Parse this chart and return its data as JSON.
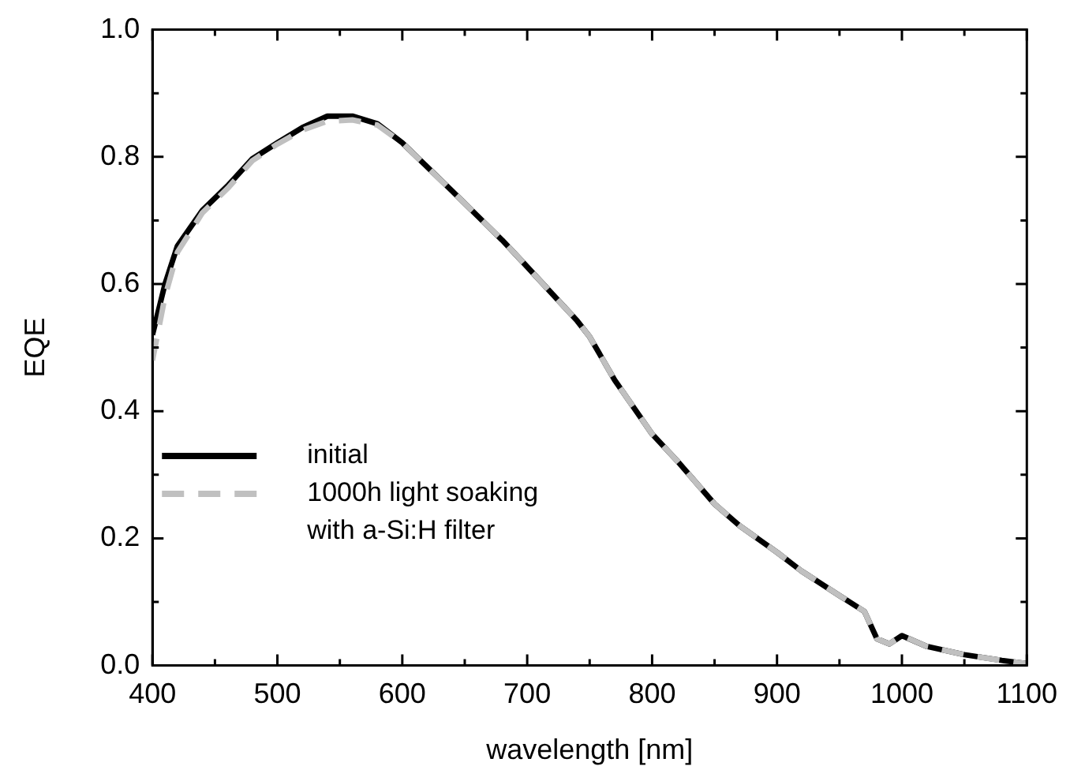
{
  "chart_data": {
    "type": "line",
    "xlabel": "wavelength [nm]",
    "ylabel": "EQE",
    "x": [
      400,
      410,
      420,
      440,
      460,
      480,
      500,
      520,
      540,
      560,
      580,
      600,
      640,
      680,
      700,
      740,
      750,
      770,
      800,
      820,
      850,
      870,
      900,
      920,
      950,
      970,
      980,
      990,
      1000,
      1020,
      1050,
      1080,
      1100
    ],
    "series": [
      {
        "name": "initial",
        "color": "#000000",
        "line_style": "solid",
        "values": [
          0.52,
          0.6,
          0.66,
          0.716,
          0.754,
          0.797,
          0.822,
          0.846,
          0.864,
          0.864,
          0.852,
          0.822,
          0.746,
          0.669,
          0.627,
          0.542,
          0.517,
          0.449,
          0.364,
          0.322,
          0.254,
          0.22,
          0.178,
          0.148,
          0.11,
          0.085,
          0.042,
          0.034,
          0.047,
          0.03,
          0.017,
          0.008,
          0.003
        ]
      },
      {
        "name": "1000h light soaking with a-Si:H filter",
        "color": "#c0c0c0",
        "line_style": "dashed",
        "values": [
          0.48,
          0.58,
          0.65,
          0.712,
          0.75,
          0.794,
          0.82,
          0.842,
          0.856,
          0.858,
          0.85,
          0.822,
          0.746,
          0.669,
          0.627,
          0.542,
          0.517,
          0.449,
          0.364,
          0.322,
          0.254,
          0.22,
          0.178,
          0.148,
          0.11,
          0.085,
          0.042,
          0.034,
          0.047,
          0.03,
          0.017,
          0.008,
          0.003
        ]
      }
    ],
    "xlim": [
      400,
      1100
    ],
    "xticks": [
      400,
      {
        "value": 450,
        "label": null
      },
      500,
      {
        "value": 550,
        "label": null
      },
      600,
      {
        "value": 650,
        "label": null
      },
      700,
      {
        "value": 750,
        "label": null
      },
      800,
      {
        "value": 850,
        "label": null
      },
      900,
      {
        "value": 950,
        "label": null
      },
      1000,
      {
        "value": 1050,
        "label": null
      },
      1100
    ],
    "ylim": [
      0,
      1
    ],
    "yticks": [
      {
        "value": 0,
        "label": "0.0"
      },
      {
        "value": 0.1,
        "label": null
      },
      0.2,
      {
        "value": 0.3,
        "label": null
      },
      0.4,
      {
        "value": 0.5,
        "label": null
      },
      0.6,
      {
        "value": 0.7,
        "label": null
      },
      0.8,
      {
        "value": 0.9,
        "label": null
      },
      {
        "value": 1,
        "label": "1.0"
      }
    ],
    "grid": false,
    "legend": "left",
    "marker": "none"
  }
}
